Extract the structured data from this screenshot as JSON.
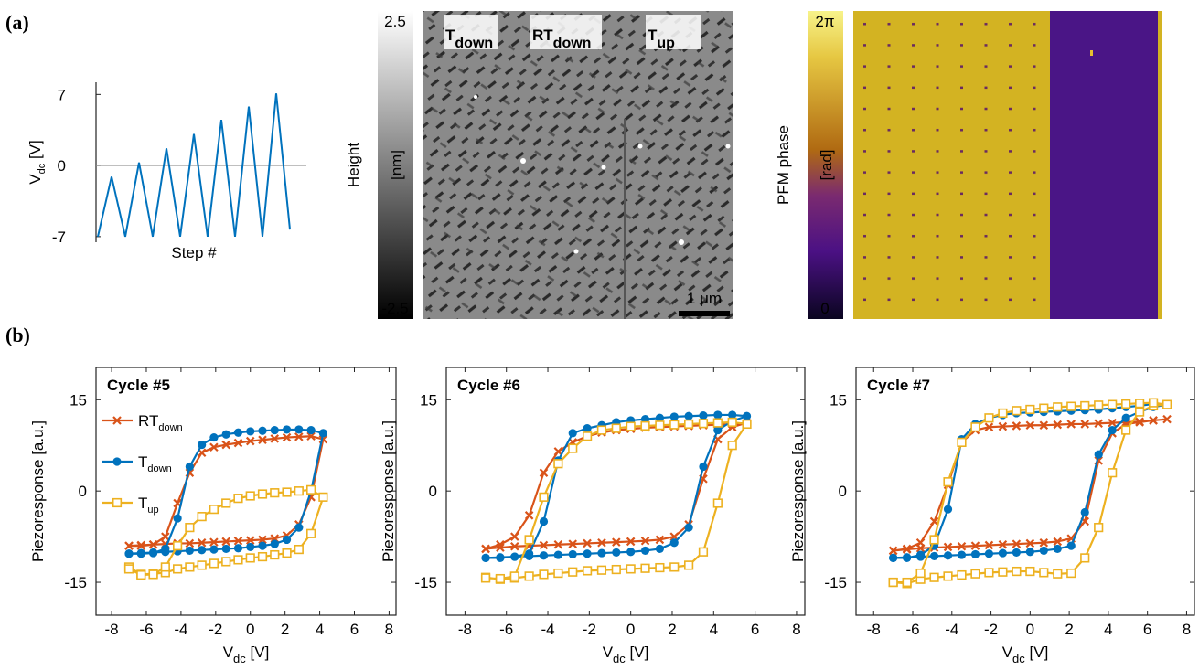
{
  "panel_labels": [
    "(a)",
    "(b)"
  ],
  "height_map": {
    "label": "Height",
    "unit": "[nm]",
    "clim": [
      -2.5,
      2.5
    ],
    "ticks": [
      2.5,
      -2.5
    ],
    "scale_bar": "1 μm",
    "annotations": [
      {
        "text": "T",
        "sub": "down",
        "color": "#0072bd"
      },
      {
        "text": "RT",
        "sub": "down",
        "color": "#d95319"
      },
      {
        "text": "T",
        "sub": "up",
        "color": "#edb120"
      }
    ]
  },
  "phase_map": {
    "label": "PFM phase",
    "unit": "[rad]",
    "clim": [
      0,
      6.283
    ],
    "ticks": [
      {
        "value": 6.283,
        "label": "2π"
      },
      0
    ]
  },
  "chart_data": [
    {
      "type": "line",
      "x": [
        0,
        1,
        2,
        3,
        4,
        5,
        6,
        7,
        8,
        9,
        10,
        11,
        12,
        13,
        14
      ],
      "values": [
        -7,
        -1.1,
        -7,
        0.3,
        -7,
        1.7,
        -7,
        3.1,
        -7,
        4.5,
        -7,
        5.8,
        -7,
        7.1,
        -6.3
      ],
      "color": "#0072bd",
      "xlim": [
        0,
        14
      ],
      "ylim": [
        -7.55,
        8.2
      ],
      "yticks": [
        -7,
        0,
        7
      ],
      "xlabel": "Step #",
      "ylabel": {
        "text": "V",
        "sub": "dc",
        "suffix": " [V]"
      }
    },
    {
      "type": "line",
      "title": "Cycle #5",
      "x": [
        -7,
        -6.3,
        -5.6,
        -4.9,
        -4.2,
        -3.5,
        -2.8,
        -2.1,
        -1.4,
        -0.7,
        0,
        0.7,
        1.4,
        2.1,
        2.8,
        3.5,
        4.2,
        3.5,
        2.8,
        2.1,
        1.4,
        0.7,
        0,
        -0.7,
        -1.4,
        -2.1,
        -2.8,
        -3.5,
        -4.2,
        -4.9,
        -5.6,
        -6.3,
        -7
      ],
      "series": [
        {
          "name": {
            "text": "RT",
            "sub": "down"
          },
          "color": "#d95319",
          "marker": "x",
          "values": [
            -9,
            -8.9,
            -8.8,
            -8.7,
            -8.6,
            -8.6,
            -8.5,
            -8.4,
            -8.3,
            -8.2,
            -8.1,
            -8,
            -7.8,
            -7.3,
            -5.5,
            -1,
            8.5,
            9,
            8.9,
            8.8,
            8.6,
            8.4,
            8.2,
            7.9,
            7.6,
            7.2,
            6.3,
            3,
            -2,
            -7.5,
            -8.8,
            -9,
            -9
          ]
        },
        {
          "name": {
            "text": "T",
            "sub": "down"
          },
          "color": "#0072bd",
          "marker": "o",
          "values": [
            -10.3,
            -10.2,
            -10.1,
            -10,
            -9.9,
            -9.8,
            -9.7,
            -9.6,
            -9.5,
            -9.4,
            -9.2,
            -9,
            -8.7,
            -8,
            -6,
            0,
            9.5,
            10,
            10.1,
            10.1,
            10,
            9.9,
            9.8,
            9.6,
            9.3,
            8.8,
            7.6,
            4,
            -4.5,
            -9.5,
            -10.2,
            -10.3,
            -10.3
          ]
        },
        {
          "name": {
            "text": "T",
            "sub": "up"
          },
          "color": "#edb120",
          "marker": "s",
          "values": [
            -12.5,
            -13.7,
            -13.6,
            -13.4,
            -12.8,
            -12.5,
            -12.2,
            -11.9,
            -11.6,
            -11.3,
            -11,
            -10.8,
            -10.5,
            -10.2,
            -9.6,
            -7,
            -1,
            0.2,
            0,
            -0.2,
            -0.3,
            -0.5,
            -0.8,
            -1.2,
            -2,
            -3,
            -4.2,
            -6,
            -9,
            -12.5,
            -13.7,
            -13.8,
            -12.8
          ]
        }
      ],
      "xlim": [
        -8.9,
        8.4
      ],
      "ylim": [
        -20.4,
        20.3
      ],
      "xticks": [
        -8,
        -6,
        -4,
        -2,
        0,
        2,
        4,
        6,
        8
      ],
      "yticks": [
        -15,
        0,
        15
      ],
      "xlabel": {
        "text": "V",
        "sub": "dc",
        "suffix": " [V]"
      },
      "ylabel": "Piezoresponse [a.u.]",
      "legend": "upper left"
    },
    {
      "type": "line",
      "title": "Cycle #6",
      "x": [
        -7,
        -6.3,
        -5.6,
        -4.9,
        -4.2,
        -3.5,
        -2.8,
        -2.1,
        -1.4,
        -0.7,
        0,
        0.7,
        1.4,
        2.1,
        2.8,
        3.5,
        4.2,
        4.9,
        5.6,
        4.9,
        4.2,
        3.5,
        2.8,
        2.1,
        1.4,
        0.7,
        0,
        -0.7,
        -1.4,
        -2.1,
        -2.8,
        -3.5,
        -4.2,
        -4.9,
        -5.6,
        -6.3,
        -7
      ],
      "series": [
        {
          "color": "#d95319",
          "marker": "x",
          "values": [
            -9.5,
            -9.3,
            -9.1,
            -9,
            -8.9,
            -8.8,
            -8.7,
            -8.6,
            -8.5,
            -8.4,
            -8.3,
            -8.2,
            -8,
            -7.5,
            -5.5,
            2,
            8.5,
            10.5,
            11.2,
            11,
            10.9,
            10.8,
            10.7,
            10.6,
            10.5,
            10.4,
            10.2,
            10,
            9.6,
            9,
            8,
            6.5,
            3,
            -4,
            -7.5,
            -8.8,
            -9.5
          ]
        },
        {
          "color": "#0072bd",
          "marker": "o",
          "values": [
            -11,
            -10.9,
            -10.8,
            -10.7,
            -10.6,
            -10.5,
            -10.4,
            -10.3,
            -10.2,
            -10.1,
            -10,
            -9.8,
            -9.5,
            -8.5,
            -6,
            4,
            10,
            11.5,
            12.3,
            12.5,
            12.5,
            12.4,
            12.3,
            12.2,
            12,
            11.8,
            11.6,
            11.3,
            10.8,
            10.3,
            9.5,
            5,
            -5,
            -10.3,
            -10.8,
            -11,
            -11
          ]
        },
        {
          "color": "#edb120",
          "marker": "s",
          "values": [
            -14.2,
            -14.5,
            -14.3,
            -14,
            -13.7,
            -13.5,
            -13.3,
            -13.1,
            -13,
            -12.9,
            -12.8,
            -12.7,
            -12.6,
            -12.5,
            -12.2,
            -10,
            -2,
            7.5,
            11,
            11.3,
            11.2,
            11.1,
            11,
            10.9,
            10.8,
            10.7,
            10.6,
            10.3,
            10,
            9,
            7,
            4.5,
            -1,
            -8,
            -14,
            -14.4,
            -14.3
          ]
        }
      ],
      "xlim": [
        -8.9,
        8.4
      ],
      "ylim": [
        -20.4,
        20.3
      ],
      "xticks": [
        -8,
        -6,
        -4,
        -2,
        0,
        2,
        4,
        6,
        8
      ],
      "yticks": [
        -15,
        0,
        15
      ],
      "xlabel": {
        "text": "V",
        "sub": "dc",
        "suffix": " [V]"
      },
      "ylabel": "Piezoresponse [a.u.]",
      "legend": false
    },
    {
      "type": "line",
      "title": "Cycle #7",
      "x": [
        -7,
        -6.3,
        -5.6,
        -4.9,
        -4.2,
        -3.5,
        -2.8,
        -2.1,
        -1.4,
        -0.7,
        0,
        0.7,
        1.4,
        2.1,
        2.8,
        3.5,
        4.2,
        4.9,
        5.6,
        6.3,
        7,
        6.3,
        5.6,
        4.9,
        4.2,
        3.5,
        2.8,
        2.1,
        1.4,
        0.7,
        0,
        -0.7,
        -1.4,
        -2.1,
        -2.8,
        -3.5,
        -4.2,
        -4.9,
        -5.6,
        -6.3,
        -7
      ],
      "series": [
        {
          "color": "#d95319",
          "marker": "x",
          "values": [
            -9.8,
            -9.6,
            -9.4,
            -9.3,
            -9.2,
            -9.1,
            -9,
            -8.9,
            -8.8,
            -8.7,
            -8.6,
            -8.5,
            -8.3,
            -7.8,
            -5,
            5,
            9.5,
            11,
            11.3,
            11.6,
            11.8,
            11.6,
            11.4,
            11.3,
            11.2,
            11.1,
            11,
            11,
            10.9,
            10.8,
            10.8,
            10.7,
            10.6,
            10.5,
            10,
            8,
            1,
            -5,
            -8.5,
            -9.5,
            -9.8
          ]
        },
        {
          "color": "#0072bd",
          "marker": "o",
          "values": [
            -11,
            -10.9,
            -10.8,
            -10.7,
            -10.6,
            -10.5,
            -10.4,
            -10.3,
            -10.2,
            -10.1,
            -10,
            -9.8,
            -9.5,
            -9,
            -3.5,
            6,
            10,
            12,
            13,
            13.8,
            14.2,
            14.3,
            14,
            13.8,
            13.6,
            13.4,
            13.3,
            13.2,
            13.1,
            13,
            12.9,
            12.8,
            12.5,
            12,
            11,
            8.5,
            -3,
            -9,
            -10.5,
            -11,
            -11
          ]
        },
        {
          "color": "#edb120",
          "marker": "s",
          "values": [
            -15,
            -15.2,
            -14.5,
            -14.2,
            -14,
            -13.8,
            -13.6,
            -13.4,
            -13.3,
            -13.2,
            -13.2,
            -13.4,
            -13.6,
            -13.5,
            -11,
            -6,
            3,
            10,
            13,
            14,
            14.2,
            14.5,
            14.4,
            14.3,
            14.2,
            14.1,
            14,
            13.9,
            13.8,
            13.6,
            13.4,
            13.2,
            12.8,
            12,
            10.5,
            8,
            1.5,
            -8,
            -13.5,
            -15,
            -15
          ]
        }
      ],
      "xlim": [
        -8.9,
        8.4
      ],
      "ylim": [
        -20.4,
        20.3
      ],
      "xticks": [
        -8,
        -6,
        -4,
        -2,
        0,
        2,
        4,
        6,
        8
      ],
      "yticks": [
        -15,
        0,
        15
      ],
      "xlabel": {
        "text": "V",
        "sub": "dc",
        "suffix": " [V]"
      },
      "ylabel": "Piezoresponse [a.u.]",
      "legend": false
    }
  ]
}
